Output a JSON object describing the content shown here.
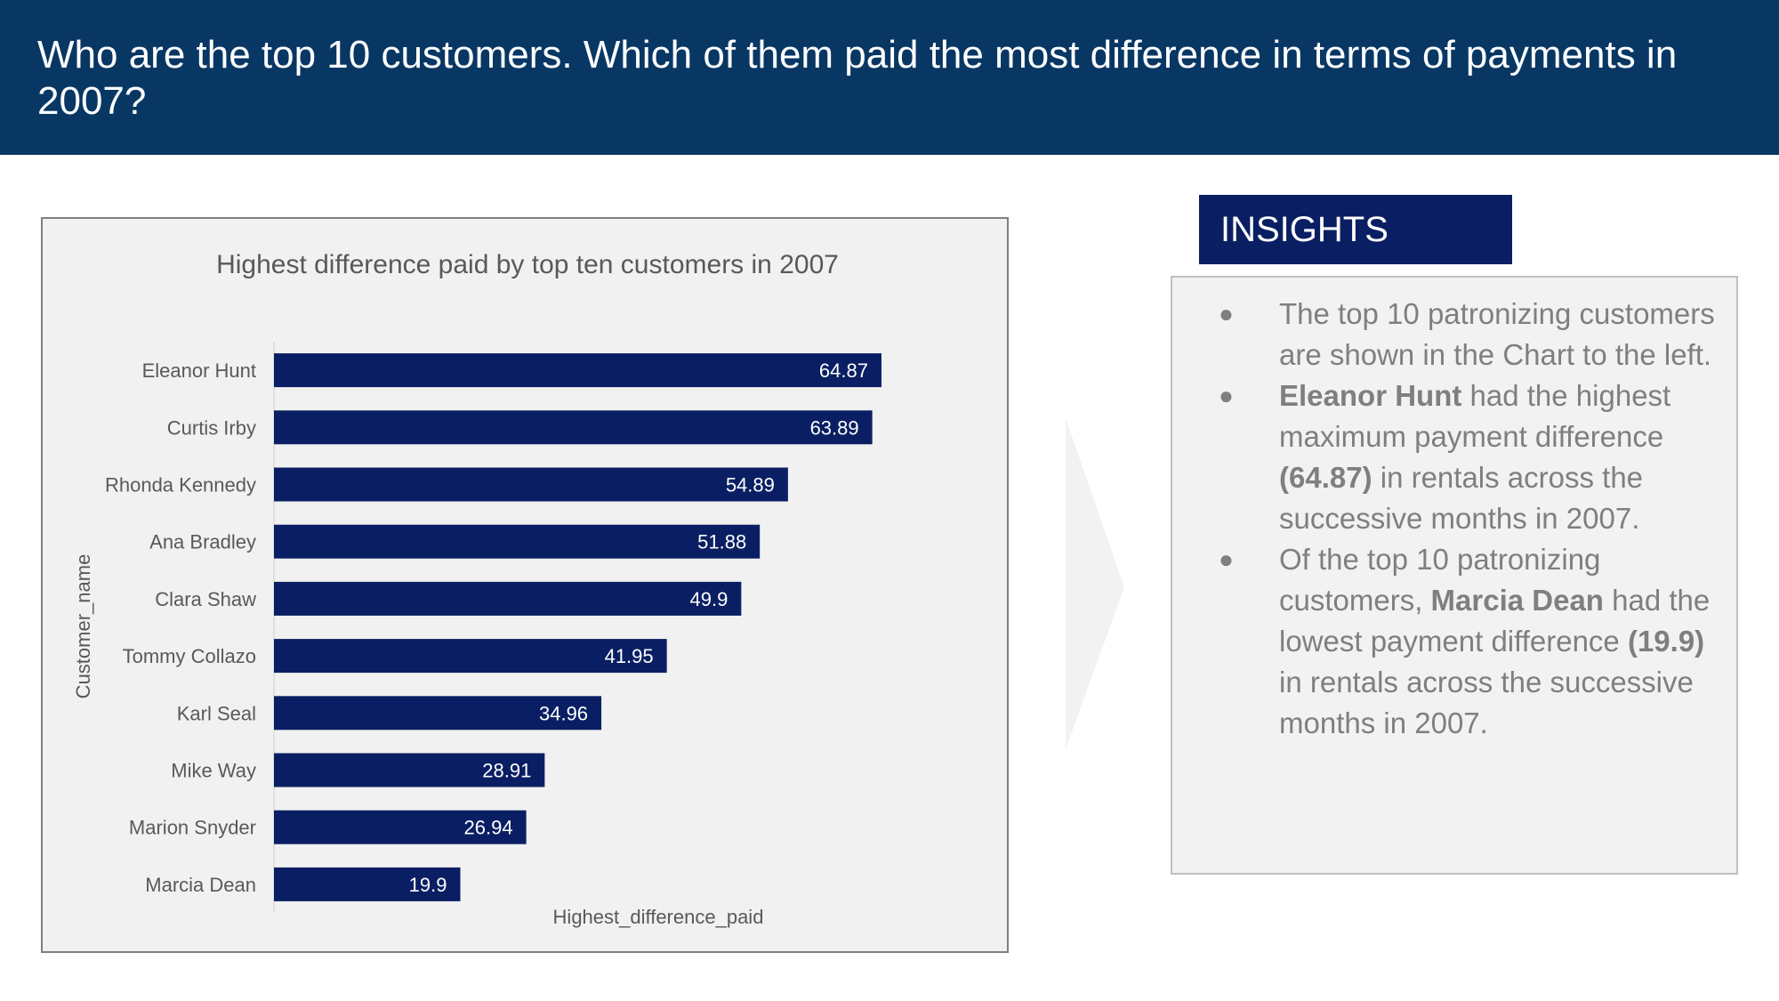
{
  "header": {
    "title": "Who are the top 10 customers. Which of them paid the most difference in terms of payments in 2007?"
  },
  "chart_data": {
    "type": "bar",
    "orientation": "horizontal",
    "title": "Highest difference paid by top ten customers in 2007",
    "xlabel": "Highest_difference_paid",
    "ylabel": "Customer_name",
    "categories": [
      "Eleanor Hunt",
      "Curtis Irby",
      "Rhonda Kennedy",
      "Ana Bradley",
      "Clara Shaw",
      "Tommy Collazo",
      "Karl Seal",
      "Mike Way",
      "Marion Snyder",
      "Marcia Dean"
    ],
    "values": [
      64.87,
      63.89,
      54.89,
      51.88,
      49.9,
      41.95,
      34.96,
      28.91,
      26.94,
      19.9
    ],
    "value_labels": [
      "64.87",
      "63.89",
      "54.89",
      "51.88",
      "49.9",
      "41.95",
      "34.96",
      "28.91",
      "26.94",
      "19.9"
    ],
    "xlim": [
      0,
      70
    ],
    "bar_color": "#0a1f63",
    "grid": false,
    "legend": "none"
  },
  "insights": {
    "tab_label": "INSIGHTS",
    "bullet_glyph": "●",
    "items": [
      {
        "parts": [
          {
            "text": "The top 10 patronizing customers are shown in the Chart to the left.",
            "bold": false
          }
        ]
      },
      {
        "parts": [
          {
            "text": "Eleanor Hunt",
            "bold": true
          },
          {
            "text": " had the highest maximum payment difference ",
            "bold": false
          },
          {
            "text": "(64.87)",
            "bold": true
          },
          {
            "text": " in rentals across the successive months in 2007.",
            "bold": false
          }
        ]
      },
      {
        "parts": [
          {
            "text": "Of the top 10 patronizing customers, ",
            "bold": false
          },
          {
            "text": "Marcia Dean",
            "bold": true
          },
          {
            "text": " had the lowest payment difference ",
            "bold": false
          },
          {
            "text": "(19.9)",
            "bold": true
          },
          {
            "text": " in rentals across the successive months in 2007.",
            "bold": false
          }
        ]
      }
    ]
  },
  "colors": {
    "header_bg": "#083764",
    "tab_bg": "#0a1f63",
    "panel_bg": "#f1f1f1",
    "text_gray": "#7f7f7f"
  },
  "icons": {
    "divider": "chevron-right-icon"
  }
}
